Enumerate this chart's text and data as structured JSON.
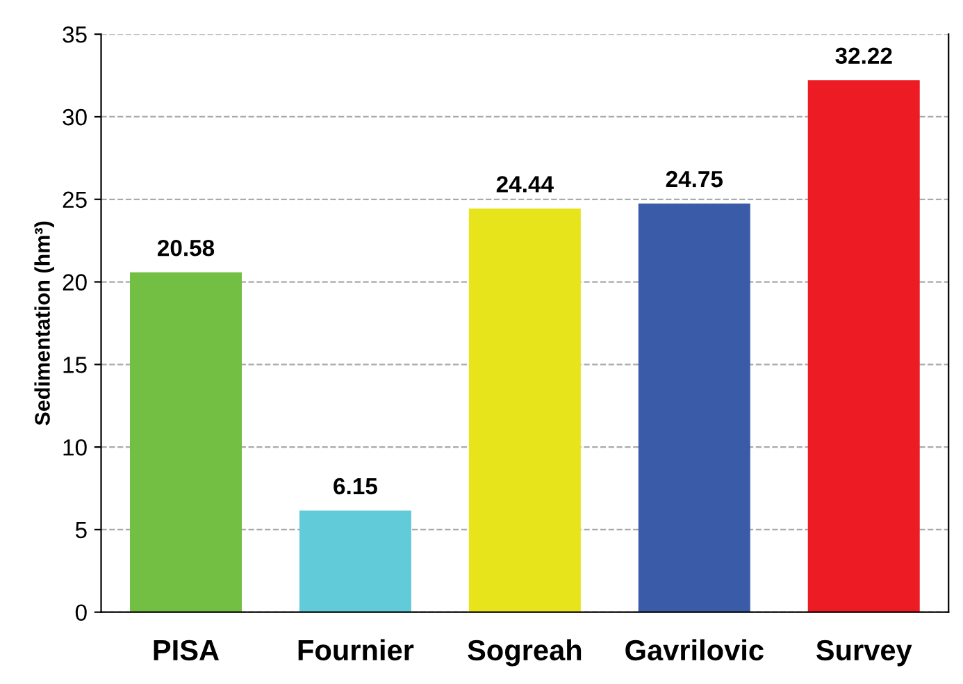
{
  "chart_data": {
    "type": "bar",
    "ylabel": "Sedimentation (hm³)",
    "categories": [
      "PISA",
      "Fournier",
      "Sogreah",
      "Gavrilovic",
      "Survey"
    ],
    "values": [
      20.58,
      6.15,
      24.44,
      24.75,
      32.22
    ],
    "colors": [
      "#72bf44",
      "#62cbd9",
      "#e8e41c",
      "#3a5ca8",
      "#ed1c24"
    ],
    "ylim": [
      0,
      35
    ],
    "yticks": [
      0,
      5,
      10,
      15,
      20,
      25,
      30,
      35
    ],
    "grid": "y",
    "data_labels": true
  }
}
